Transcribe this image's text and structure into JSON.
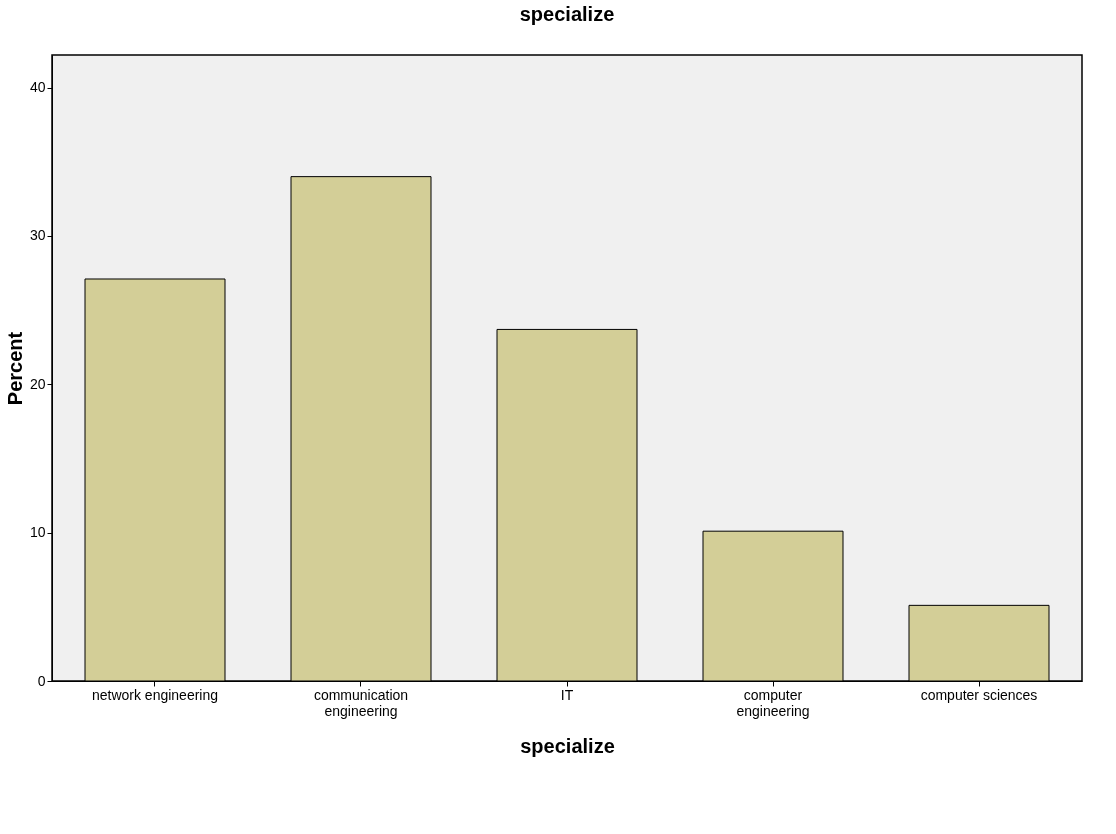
{
  "chart_data": {
    "type": "bar",
    "title": "specialize",
    "xlabel": "specialize",
    "ylabel": "Percent",
    "categories": [
      "network engineering",
      "communication engineering",
      "IT",
      "computer engineering",
      "computer sciences"
    ],
    "values": [
      27.1,
      34.0,
      23.7,
      10.1,
      5.1
    ],
    "color": "#d3ce97",
    "ylim": [
      0,
      42.2
    ],
    "yticks": [
      0,
      10,
      20,
      30,
      40
    ],
    "grid": false
  }
}
